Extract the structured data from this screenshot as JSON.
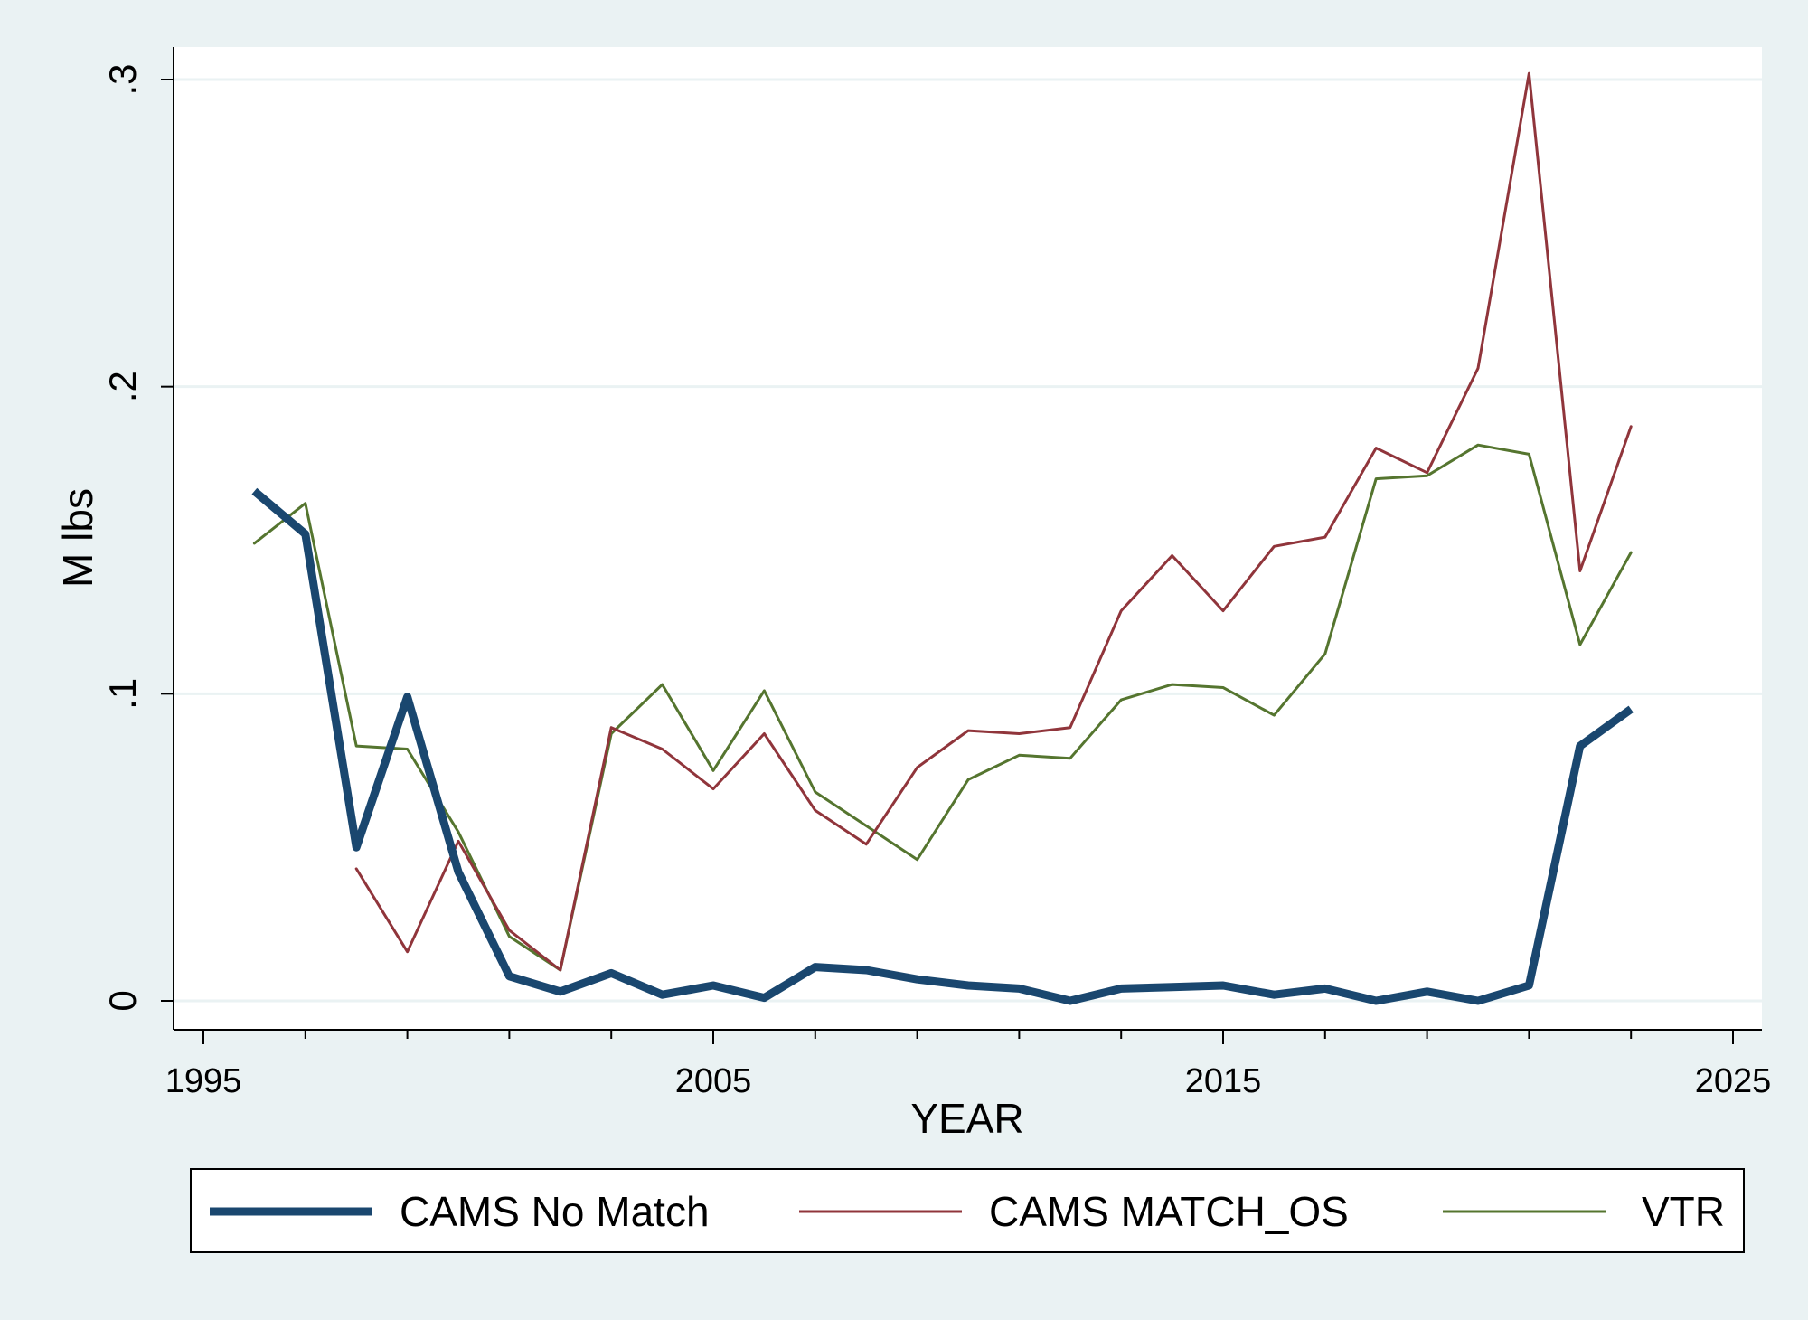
{
  "chart_data": {
    "type": "line",
    "xlabel": "YEAR",
    "ylabel": "M lbs",
    "xlim": [
      1994.5,
      2025.5
    ],
    "ylim": [
      -0.01,
      0.31
    ],
    "x_ticks": [
      {
        "value": 1995,
        "label": "1995"
      },
      {
        "value": 2005,
        "label": "2005"
      },
      {
        "value": 2015,
        "label": "2015"
      },
      {
        "value": 2025,
        "label": "2025"
      }
    ],
    "y_ticks": [
      {
        "value": 0,
        "label": "0"
      },
      {
        "value": 0.1,
        "label": ".1"
      },
      {
        "value": 0.2,
        "label": ".2"
      },
      {
        "value": 0.3,
        "label": ".3"
      }
    ],
    "grid": "horizontal",
    "legend_position": "bottom",
    "series": [
      {
        "name": "CAMS No Match",
        "color": "#1a476f",
        "x": [
          1996,
          1997,
          1998,
          1999,
          2000,
          2001,
          2002,
          2003,
          2004,
          2005,
          2006,
          2007,
          2008,
          2009,
          2010,
          2011,
          2012,
          2013,
          2014,
          2015,
          2016,
          2017,
          2018,
          2019,
          2020,
          2021,
          2022,
          2023
        ],
        "y": [
          0.166,
          0.152,
          0.05,
          0.099,
          0.042,
          0.008,
          0.003,
          0.009,
          0.002,
          0.005,
          0.001,
          0.011,
          0.01,
          0.007,
          0.005,
          0.004,
          0.0,
          0.004,
          0.0045,
          0.005,
          0.002,
          0.004,
          0.0,
          0.003,
          0.0,
          0.005,
          0.083,
          0.095
        ]
      },
      {
        "name": "CAMS MATCH_OS",
        "color": "#90353b",
        "x": [
          1998,
          1999,
          2000,
          2001,
          2002,
          2003,
          2004,
          2005,
          2006,
          2007,
          2008,
          2009,
          2010,
          2011,
          2012,
          2013,
          2014,
          2015,
          2016,
          2017,
          2018,
          2019,
          2020,
          2021,
          2022,
          2023
        ],
        "y": [
          0.043,
          0.016,
          0.052,
          0.023,
          0.01,
          0.089,
          0.082,
          0.069,
          0.087,
          0.062,
          0.051,
          0.076,
          0.088,
          0.087,
          0.089,
          0.127,
          0.145,
          0.127,
          0.148,
          0.151,
          0.18,
          0.172,
          0.206,
          0.302,
          0.14,
          0.187
        ]
      },
      {
        "name": "VTR",
        "color": "#55752f",
        "x": [
          1996,
          1997,
          1998,
          1999,
          2000,
          2001,
          2002,
          2003,
          2004,
          2005,
          2006,
          2007,
          2008,
          2009,
          2010,
          2011,
          2012,
          2013,
          2014,
          2015,
          2016,
          2017,
          2018,
          2019,
          2020,
          2021,
          2022,
          2023
        ],
        "y": [
          0.149,
          0.162,
          0.083,
          0.082,
          0.055,
          0.021,
          0.01,
          0.087,
          0.103,
          0.075,
          0.101,
          0.068,
          0.057,
          0.046,
          0.072,
          0.08,
          0.079,
          0.098,
          0.103,
          0.102,
          0.093,
          0.113,
          0.17,
          0.171,
          0.181,
          0.178,
          0.116,
          0.146
        ]
      }
    ]
  }
}
